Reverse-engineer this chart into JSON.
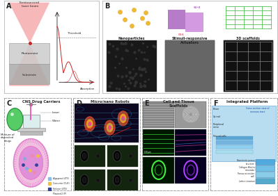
{
  "bg_color": "#ffffff",
  "text_color": "#222222",
  "border_color": "#aaaaaa",
  "panel_labels": [
    "A",
    "B",
    "C",
    "D",
    "E",
    "F"
  ],
  "panel_c_title": "CNS Drug Carriers",
  "panel_d_title": "Micro/nano Robots",
  "panel_e_title": "Cell and Tissue\nScaffolds",
  "panel_f_title": "Integrated Platform",
  "laser_pink": "#f4a0a0",
  "laser_red": "#cc2222",
  "su8_color": "#b06ec4",
  "bsa_color": "#e87c8c",
  "scaffold_green": "#44bb44",
  "gold_color": "#f0b930",
  "drug_circle_outer": "#dd88cc",
  "drug_circle_inner": "#ee66cc",
  "legend_colors": [
    "#88bbee",
    "#f0c040",
    "#334499",
    "#ee88aa"
  ],
  "legend_labels": [
    "Algeprost (4T5)",
    "Curcumin (CUR)",
    "Helvein (4T5)",
    "Plaxocel2 (P)"
  ],
  "panel_d_top_color": "#1a0a2e",
  "panel_d_grid_color": "#111a11",
  "panel_e_gray1": "#888888",
  "panel_e_gray2": "#cccccc",
  "panel_e_dark_green": "#001800",
  "panel_e_dark_blue": "#00001a",
  "panel_f_blue": "#88ccee",
  "panel_f_label_color": "#1144aa",
  "f_right_colors": [
    "#50aadd",
    "#70c0e8",
    "#88cce8",
    "#55aacc"
  ]
}
